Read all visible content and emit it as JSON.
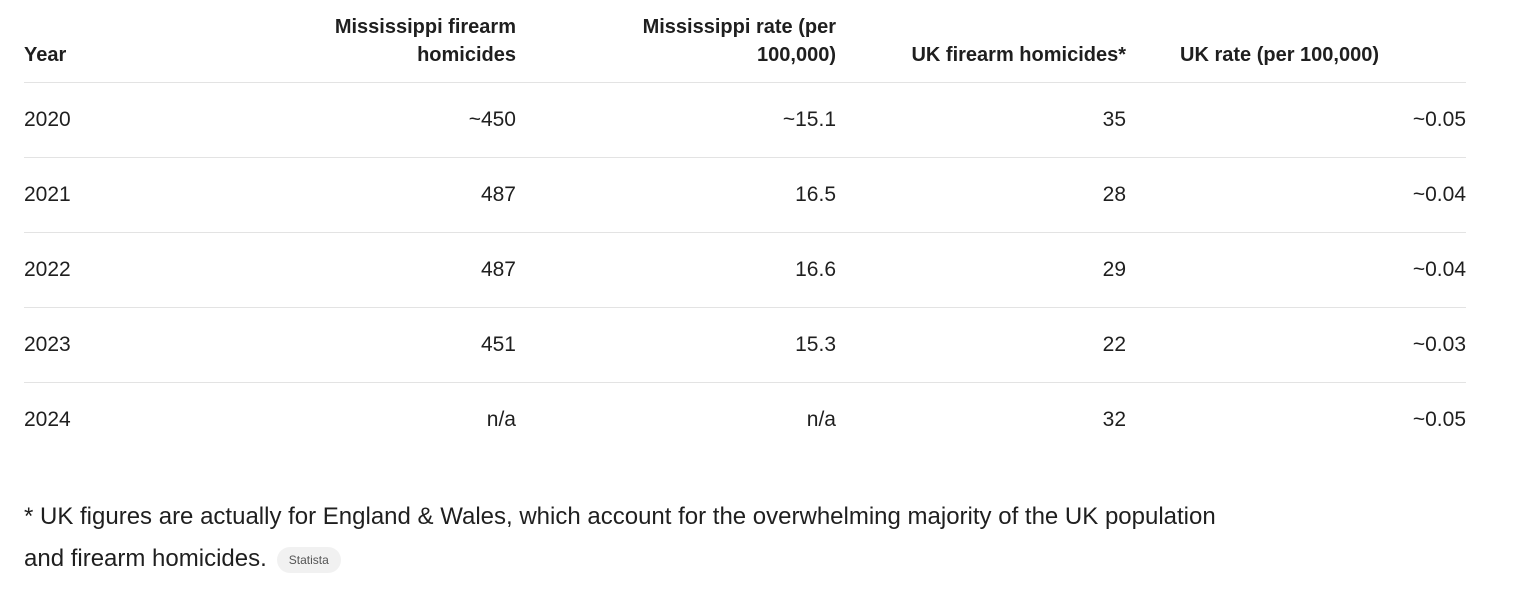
{
  "table": {
    "headers": [
      "Year",
      "Mississippi firearm homicides",
      "Mississippi rate (per 100,000)",
      "UK firearm homicides*",
      "UK rate (per 100,000)"
    ],
    "rows": [
      [
        "2020",
        "~450",
        "~15.1",
        "35",
        "~0.05"
      ],
      [
        "2021",
        "487",
        "16.5",
        "28",
        "~0.04"
      ],
      [
        "2022",
        "487",
        "16.6",
        "29",
        "~0.04"
      ],
      [
        "2023",
        "451",
        "15.3",
        "22",
        "~0.03"
      ],
      [
        "2024",
        "n/a",
        "n/a",
        "32",
        "~0.05"
      ]
    ]
  },
  "footnote": {
    "text": "* UK figures are actually for England & Wales, which account for the overwhelming majority of the UK population and firearm homicides.",
    "source": "Statista"
  }
}
